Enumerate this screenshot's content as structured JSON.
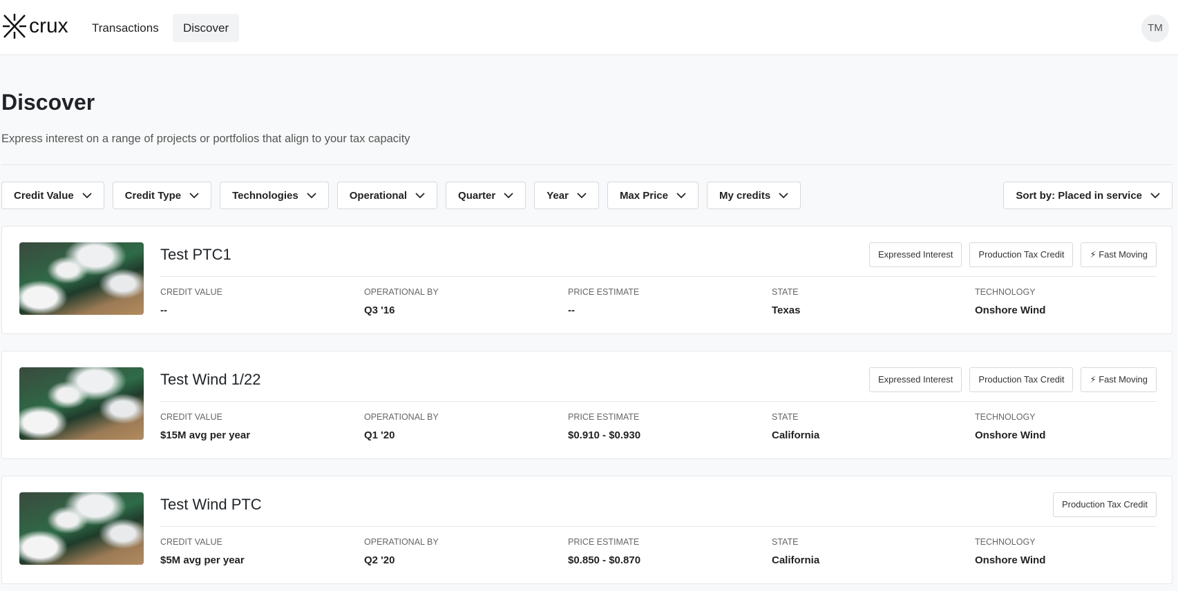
{
  "nav": {
    "logo": "crux",
    "links": [
      "Transactions",
      "Discover"
    ],
    "avatar": "TM"
  },
  "header": {
    "title": "Discover",
    "subtitle": "Express interest on a range of projects or portfolios that align to your tax capacity"
  },
  "filters": [
    "Credit Value",
    "Credit Type",
    "Technologies",
    "Operational",
    "Quarter",
    "Year",
    "Max Price",
    "My credits"
  ],
  "sort": "Sort by: Placed in service",
  "fields": [
    "CREDIT VALUE",
    "OPERATIONAL BY",
    "PRICE ESTIMATE",
    "STATE",
    "TECHNOLOGY"
  ],
  "cards": [
    {
      "title": "Test PTC1",
      "tags": [
        "Expressed Interest",
        "Production Tax Credit",
        "⚡ Fast Moving"
      ],
      "values": [
        "--",
        "Q3 '16",
        "--",
        "Texas",
        "Onshore Wind"
      ]
    },
    {
      "title": "Test Wind 1/22",
      "tags": [
        "Expressed Interest",
        "Production Tax Credit",
        "⚡ Fast Moving"
      ],
      "values": [
        "$15M avg per year",
        "Q1 '20",
        "$0.910 - $0.930",
        "California",
        "Onshore Wind"
      ]
    },
    {
      "title": "Test Wind PTC",
      "tags": [
        "Production Tax Credit"
      ],
      "values": [
        "$5M avg per year",
        "Q2 '20",
        "$0.850 - $0.870",
        "California",
        "Onshore Wind"
      ]
    }
  ]
}
